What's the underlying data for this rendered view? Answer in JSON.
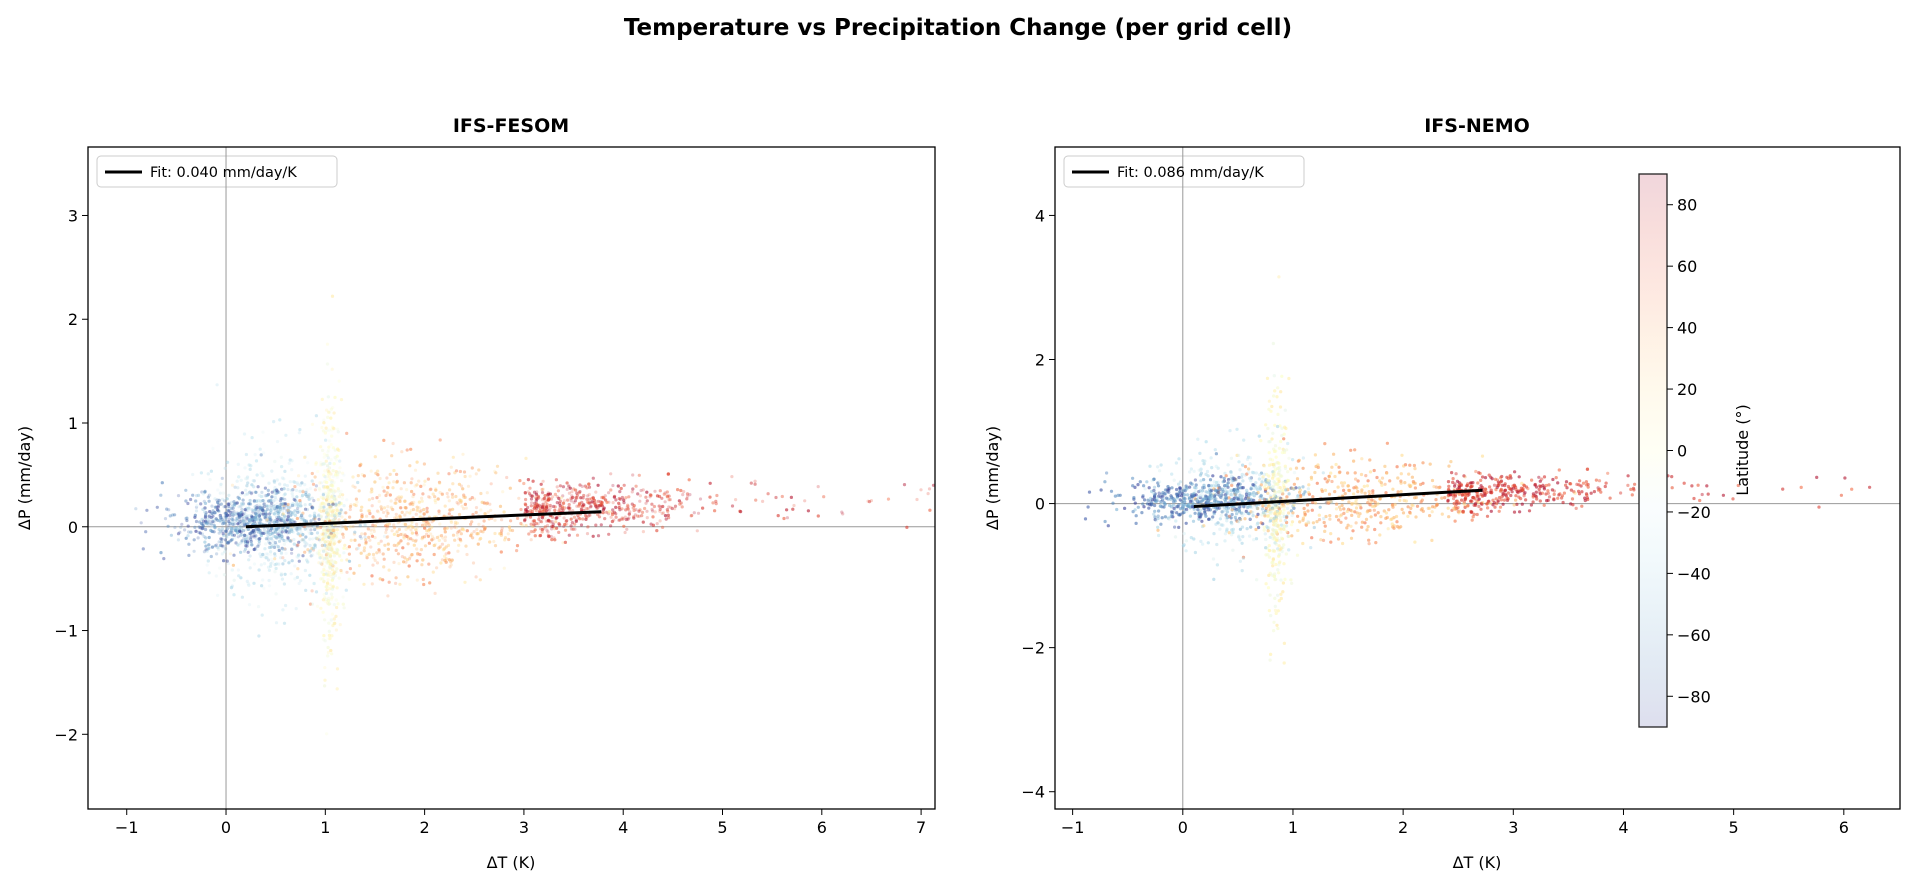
{
  "suptitle": "Temperature vs Precipitation Change (per grid cell)",
  "chart_data": [
    {
      "type": "scatter",
      "title": "IFS-FESOM",
      "xlabel": "ΔT (K)",
      "ylabel": "ΔP (mm/day)",
      "xlim": [
        -1.39,
        7.14
      ],
      "ylim": [
        -2.72,
        3.66
      ],
      "xticks": [
        -1,
        0,
        1,
        2,
        3,
        4,
        5,
        6,
        7
      ],
      "yticks": [
        -2,
        -1,
        0,
        1,
        2,
        3
      ],
      "xtick_labels": [
        "−1",
        "0",
        "1",
        "2",
        "3",
        "4",
        "5",
        "6",
        "7"
      ],
      "ytick_labels": [
        "−2",
        "−1",
        "0",
        "1",
        "2",
        "3"
      ],
      "color_by": "latitude",
      "colormap": "RdYlBu_r",
      "fit": {
        "label": "Fit: 0.040 mm/day/K",
        "slope": 0.04,
        "x": [
          0.2,
          3.78
        ],
        "y": [
          0.0,
          0.145
        ],
        "color": "#000000"
      },
      "reference_lines": {
        "x": 0,
        "y": 0,
        "color": "#999999"
      },
      "legend_position": "top-left",
      "grid": false
    },
    {
      "type": "scatter",
      "title": "IFS-NEMO",
      "xlabel": "ΔT (K)",
      "ylabel": "ΔP (mm/day)",
      "xlim": [
        -1.16,
        6.51
      ],
      "ylim": [
        -4.24,
        4.95
      ],
      "xticks": [
        -1,
        0,
        1,
        2,
        3,
        4,
        5,
        6
      ],
      "yticks": [
        -4,
        -2,
        0,
        2,
        4
      ],
      "xtick_labels": [
        "−1",
        "0",
        "1",
        "2",
        "3",
        "4",
        "5",
        "6"
      ],
      "ytick_labels": [
        "−4",
        "−2",
        "0",
        "2",
        "4"
      ],
      "color_by": "latitude",
      "colormap": "RdYlBu_r",
      "fit": {
        "label": "Fit: 0.086 mm/day/K",
        "slope": 0.086,
        "x": [
          0.1,
          2.72
        ],
        "y": [
          -0.04,
          0.185
        ],
        "color": "#000000"
      },
      "reference_lines": {
        "x": 0,
        "y": 0,
        "color": "#999999"
      },
      "legend_position": "top-left",
      "grid": false,
      "colorbar": {
        "label": "Latitude (°)",
        "range": [
          -90,
          90
        ],
        "ticks": [
          80,
          60,
          40,
          20,
          0,
          -20,
          -40,
          -60,
          -80
        ],
        "tick_labels": [
          "80",
          "60",
          "40",
          "20",
          "0",
          "−20",
          "−40",
          "−60",
          "−80"
        ]
      }
    }
  ]
}
